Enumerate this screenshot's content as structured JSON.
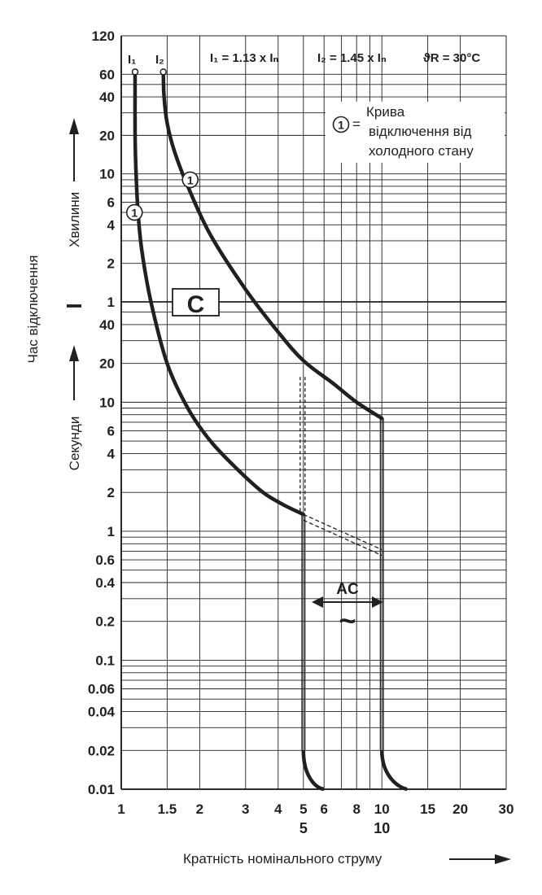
{
  "chart_data": {
    "type": "line",
    "scale": "log-log",
    "curve_class": "C",
    "formula": {
      "i1": "I₁ = 1.13 x Iₙ",
      "i2": "I₂ = 1.45 x Iₙ",
      "temp": "ϑR = 30°C"
    },
    "curve_labels": {
      "i1": "I₁",
      "i2": "I₂"
    },
    "legend": {
      "marker": "①",
      "eq": "=",
      "lines": [
        "Крива",
        "відключення від",
        "холодного стану"
      ]
    },
    "xlabel": "Кратність номінального струму",
    "ylabel": "Час відключення",
    "ylabel_minutes": "Хвилини",
    "ylabel_seconds": "Секунди",
    "ylabel_marker": "I",
    "x_ticks": [
      "1",
      "1.5",
      "2",
      "3",
      "4",
      "5",
      "6",
      "8",
      "10",
      "15",
      "20",
      "30"
    ],
    "x_tick_values": [
      1,
      1.5,
      2,
      3,
      4,
      5,
      6,
      8,
      10,
      15,
      20,
      30
    ],
    "x_ticks_secondary": [
      "5",
      "10"
    ],
    "y_ticks_minutes": [
      "120",
      "60",
      "40",
      "20",
      "10",
      "6",
      "4",
      "2",
      "1"
    ],
    "y_ticks_seconds": [
      "40",
      "20",
      "10",
      "6",
      "4",
      "2",
      "1",
      "0.6",
      "0.4",
      "0.2",
      "0.1",
      "0.06",
      "0.04",
      "0.02",
      "0.01"
    ],
    "xlim": [
      1,
      30
    ],
    "ylim_seconds": [
      0.01,
      7200
    ],
    "ac_label": "AC",
    "ac_symbol": "~",
    "series": [
      {
        "name": "I1",
        "unit": "seconds",
        "x": [
          1.13,
          1.13,
          1.14,
          1.16,
          1.2,
          1.3,
          1.5,
          1.8,
          2.2,
          2.8,
          3.5,
          4.2,
          5
        ],
        "y": [
          3600,
          1200,
          600,
          300,
          150,
          60,
          20,
          9,
          5,
          3,
          2,
          1.6,
          1.35
        ]
      },
      {
        "name": "I2",
        "unit": "seconds",
        "x": [
          1.45,
          1.46,
          1.5,
          1.6,
          1.8,
          2.2,
          3,
          4,
          5,
          6.5,
          8,
          10
        ],
        "y": [
          3600,
          2400,
          1500,
          900,
          480,
          200,
          75,
          35,
          21,
          14,
          10,
          7.5
        ]
      }
    ],
    "magnetic_trip": {
      "x_min": 5,
      "x_max": 10,
      "t_low": 0.02,
      "t_floor": 0.01,
      "tail_x_end": [
        6,
        12.5
      ]
    },
    "dashed": {
      "upper_t_at_5": 21,
      "lower_t_at_5": 1.35,
      "t_at_10": [
        0.72,
        0.65
      ]
    },
    "legend_markers_on_curves": [
      {
        "series": "I1",
        "x": 1.1,
        "y": 300
      },
      {
        "series": "I2",
        "x": 1.8,
        "y": 540
      }
    ]
  }
}
